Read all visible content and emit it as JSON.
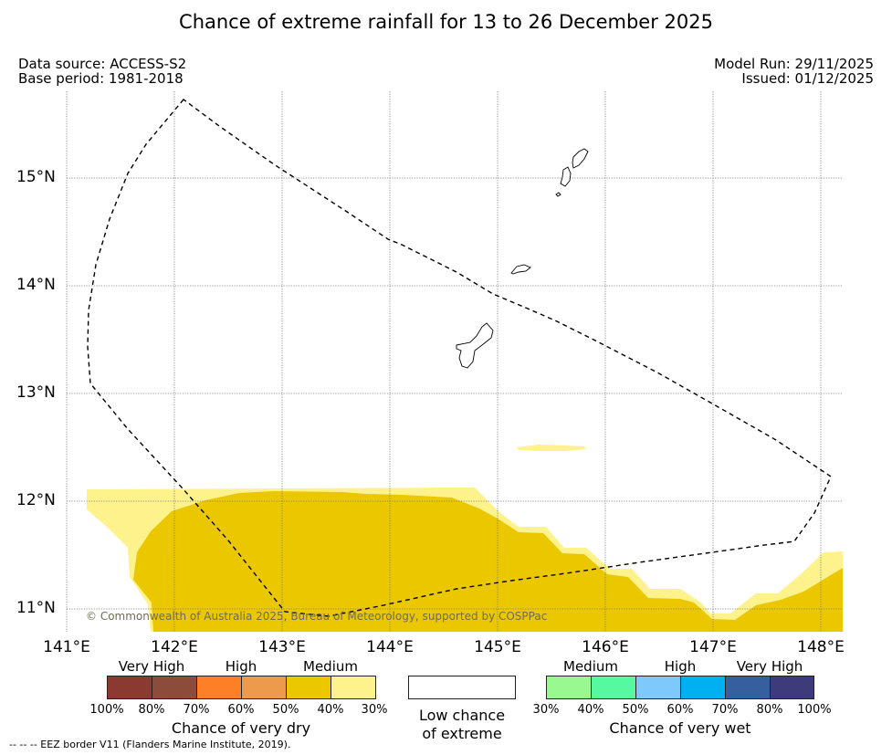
{
  "title": "Chance of extreme rainfall for 13 to 26 December 2025",
  "meta": {
    "data_source": "Data source: ACCESS-S2",
    "base_period": "Base period: 1981-2018",
    "model_run": "Model Run: 29/11/2025",
    "issued": "Issued: 01/12/2025"
  },
  "map": {
    "lat_labels": [
      "15°N",
      "14°N",
      "13°N",
      "12°N",
      "11°N"
    ],
    "lon_labels": [
      "141°E",
      "142°E",
      "143°E",
      "144°E",
      "145°E",
      "146°E",
      "147°E",
      "148°E"
    ],
    "copyright": "© Commonwealth of Australia 2025, Bureau of Meteorology, supported by COSPPac",
    "colors": {
      "medium_dry": "#ebc700",
      "lower_dry": "#fdf28c",
      "coast": "#000000",
      "eez": "#000000",
      "grid": "#777777"
    }
  },
  "legend": {
    "dry": {
      "categories": [
        "Very High",
        "High",
        "Medium"
      ],
      "colors": [
        "#8b3a32",
        "#8c4b3b",
        "#ff7f27",
        "#ee9a4c",
        "#ebc700",
        "#fdf28c"
      ],
      "ticks": [
        "100%",
        "80%",
        "70%",
        "60%",
        "50%",
        "40%",
        "30%"
      ],
      "title": "Chance of very dry"
    },
    "low": {
      "line1": "Low chance",
      "line2": "of extreme",
      "color": "#ffffff"
    },
    "wet": {
      "categories": [
        "Medium",
        "High",
        "Very High"
      ],
      "colors": [
        "#99f88f",
        "#56f9a0",
        "#7ec9fb",
        "#00b0f0",
        "#355f9f",
        "#3e3b7a"
      ],
      "ticks": [
        "30%",
        "40%",
        "50%",
        "60%",
        "70%",
        "80%",
        "100%"
      ],
      "title": "Chance of very wet"
    }
  },
  "footnote": "--  --  -- EEZ border V11 (Flanders Marine Institute, 2019)."
}
